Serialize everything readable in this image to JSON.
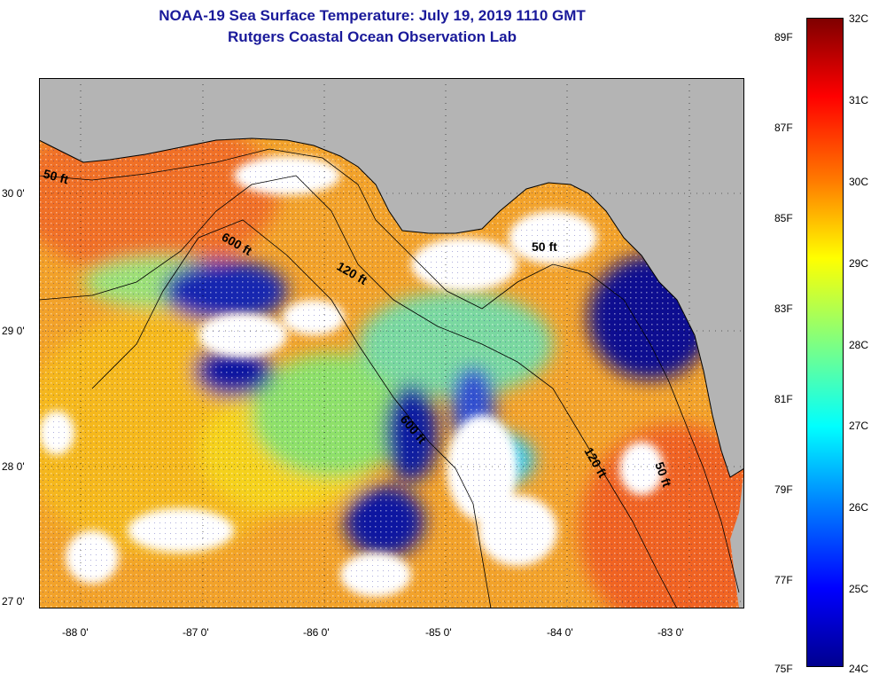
{
  "header": {
    "title": "NOAA-19 Sea Surface Temperature:  July 19, 2019 1110 GMT",
    "subtitle": "Rutgers Coastal Ocean Observation Lab"
  },
  "map": {
    "lon_ticks": [
      "-88 0'",
      "-87 0'",
      "-86 0'",
      "-85 0'",
      "-84 0'",
      "-83 0'"
    ],
    "lat_ticks": [
      "30 0'",
      "29 0'",
      "28 0'",
      "27 0'"
    ],
    "depth_labels": [
      "50 ft",
      "600 ft",
      "120 ft",
      "50 ft",
      "600 ft",
      "120 ft",
      "50 ft"
    ],
    "colors": {
      "land": "#b4b4b4",
      "cloud": "#ffffff",
      "warm": "#f0a020",
      "hot": "#f07020",
      "cool": "#0a1aa0",
      "mid": "#f5d21e",
      "green": "#7fe070"
    }
  },
  "colorbar": {
    "celsius": [
      "32C",
      "31C",
      "30C",
      "29C",
      "28C",
      "27C",
      "26C",
      "25C",
      "24C"
    ],
    "fahrenheit": [
      "89F",
      "87F",
      "85F",
      "83F",
      "81F",
      "79F",
      "77F",
      "75F"
    ]
  }
}
